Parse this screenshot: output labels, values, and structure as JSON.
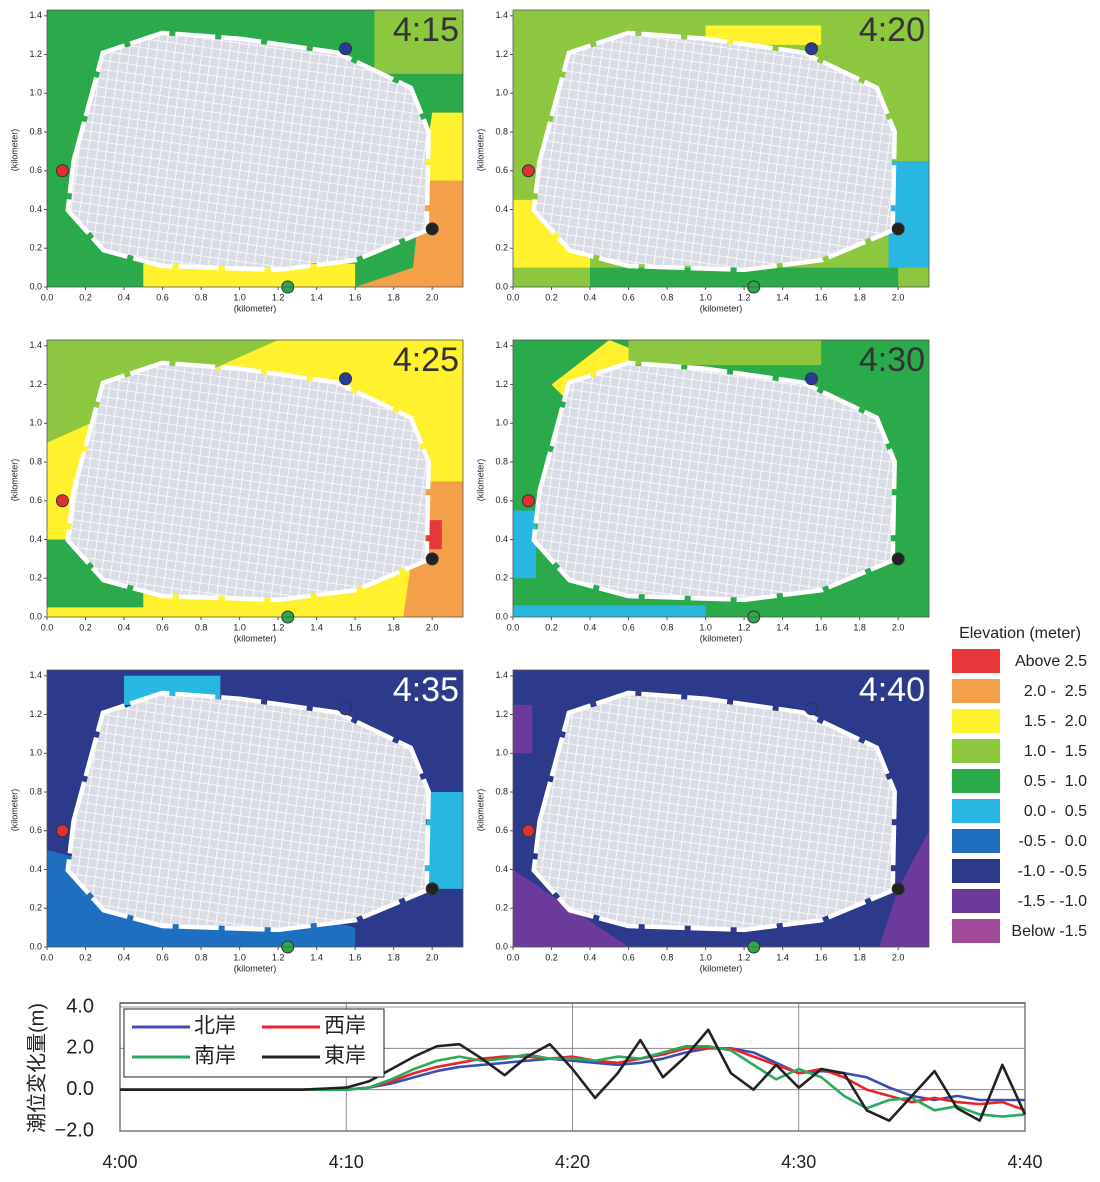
{
  "maps": [
    {
      "time": "4:15"
    },
    {
      "time": "4:20"
    },
    {
      "time": "4:25"
    },
    {
      "time": "4:30"
    },
    {
      "time": "4:35"
    },
    {
      "time": "4:40"
    }
  ],
  "map_axes": {
    "xlabel": "(kilometer)",
    "ylabel": "(kilometer)",
    "xlim": [
      0,
      2.16
    ],
    "ylim": [
      0,
      1.43
    ],
    "xticks": [
      {
        "value": 0,
        "label": "0.0"
      },
      {
        "value": 0.2,
        "label": "0.2"
      },
      {
        "value": 0.4,
        "label": "0.4"
      },
      {
        "value": 0.6,
        "label": "0.6"
      },
      {
        "value": 0.8,
        "label": "0.8"
      },
      {
        "value": 1,
        "label": "1.0"
      },
      {
        "value": 1.2,
        "label": "1.2"
      },
      {
        "value": 1.4,
        "label": "1.4"
      },
      {
        "value": 1.6,
        "label": "1.6"
      },
      {
        "value": 1.8,
        "label": "1.8"
      },
      {
        "value": 2,
        "label": "2.0"
      }
    ],
    "yticks": [
      {
        "value": 0,
        "label": "0.0"
      },
      {
        "value": 0.2,
        "label": "0.2"
      },
      {
        "value": 0.4,
        "label": "0.4"
      },
      {
        "value": 0.6,
        "label": "0.6"
      },
      {
        "value": 0.8,
        "label": "0.8"
      },
      {
        "value": 1,
        "label": "1.0"
      },
      {
        "value": 1.2,
        "label": "1.2"
      },
      {
        "value": 1.4,
        "label": "1.4"
      }
    ]
  },
  "legend": {
    "title": "Elevation (meter)",
    "items": [
      {
        "label": "Above 2.5",
        "color": "#e8373a"
      },
      {
        "label": "2.0 -  2.5",
        "color": "#f4a04a"
      },
      {
        "label": "1.5 -  2.0",
        "color": "#fff12e"
      },
      {
        "label": "1.0 -  1.5",
        "color": "#8dc63f"
      },
      {
        "label": "0.5 -  1.0",
        "color": "#2aaa4a"
      },
      {
        "label": "0.0 -  0.5",
        "color": "#29b6e0"
      },
      {
        "label": "-0.5 -  0.0",
        "color": "#1f6fc0"
      },
      {
        "label": "-1.0 - -0.5",
        "color": "#2d3a8c"
      },
      {
        "label": "-1.5 - -1.0",
        "color": "#6b3a9a"
      },
      {
        "label": "Below -1.5",
        "color": "#a24a9b"
      }
    ]
  },
  "chart_data": {
    "type": "line",
    "ylabel": "潮位変化量(m)",
    "x": [
      0,
      1,
      2,
      3,
      4,
      5,
      6,
      7,
      8,
      9,
      10,
      11,
      12,
      13,
      14,
      15,
      16,
      17,
      18,
      19,
      20,
      21,
      22,
      23,
      24,
      25,
      26,
      27,
      28,
      29,
      30,
      31,
      32,
      33,
      34,
      35,
      36,
      37,
      38,
      39,
      40
    ],
    "xlim": [
      0,
      40
    ],
    "xticks": [
      {
        "value": 0,
        "label": "4:00"
      },
      {
        "value": 10,
        "label": "4:10"
      },
      {
        "value": 20,
        "label": "4:20"
      },
      {
        "value": 30,
        "label": "4:30"
      },
      {
        "value": 40,
        "label": "4:40"
      }
    ],
    "ylim": [
      -2,
      4
    ],
    "yticks": [
      {
        "value": -2,
        "label": "−2.0"
      },
      {
        "value": 0,
        "label": "0.0"
      },
      {
        "value": 2,
        "label": "2.0"
      },
      {
        "value": 4,
        "label": "4.0"
      }
    ],
    "grid": true,
    "series": [
      {
        "name": "北岸",
        "color": "#3b4fb0",
        "values": [
          0,
          0,
          0,
          0,
          0,
          0,
          0,
          0,
          0,
          0,
          0,
          0.1,
          0.3,
          0.6,
          0.9,
          1.1,
          1.2,
          1.3,
          1.4,
          1.5,
          1.4,
          1.3,
          1.2,
          1.3,
          1.5,
          1.8,
          2.0,
          2.0,
          1.8,
          1.3,
          0.8,
          0.9,
          0.8,
          0.6,
          0.1,
          -0.3,
          -0.5,
          -0.3,
          -0.5,
          -0.5,
          -0.5
        ]
      },
      {
        "name": "西岸",
        "color": "#e8262a",
        "values": [
          0,
          0,
          0,
          0,
          0,
          0,
          0,
          0,
          0,
          0,
          0,
          0.1,
          0.4,
          0.8,
          1.1,
          1.3,
          1.5,
          1.6,
          1.6,
          1.5,
          1.6,
          1.4,
          1.3,
          1.5,
          1.7,
          2.0,
          2.0,
          2.0,
          1.6,
          1.2,
          0.8,
          1.0,
          0.6,
          0.0,
          -0.3,
          -0.6,
          -0.4,
          -0.6,
          -0.7,
          -0.6,
          -1.0
        ]
      },
      {
        "name": "南岸",
        "color": "#2aaa5a",
        "values": [
          0,
          0,
          0,
          0,
          0,
          0,
          0,
          0,
          0,
          0,
          0,
          0.1,
          0.5,
          1.0,
          1.4,
          1.6,
          1.4,
          1.5,
          1.7,
          1.5,
          1.5,
          1.4,
          1.6,
          1.5,
          1.8,
          2.1,
          2.1,
          1.9,
          1.2,
          0.5,
          1.0,
          0.6,
          -0.3,
          -0.9,
          -0.5,
          -0.4,
          -1.0,
          -0.8,
          -1.2,
          -1.3,
          -1.2
        ]
      },
      {
        "name": "東岸",
        "color": "#222222",
        "values": [
          0,
          0,
          0,
          0,
          0,
          0,
          0,
          0,
          0,
          0.05,
          0.1,
          0.4,
          1.0,
          1.6,
          2.1,
          2.2,
          1.5,
          0.7,
          1.6,
          2.2,
          1.0,
          -0.4,
          0.8,
          2.4,
          0.6,
          1.6,
          2.9,
          0.8,
          0.0,
          1.2,
          0.1,
          1.0,
          0.8,
          -1.0,
          -1.5,
          -0.3,
          0.9,
          -0.9,
          -1.5,
          1.2,
          -1.2
        ]
      }
    ]
  }
}
